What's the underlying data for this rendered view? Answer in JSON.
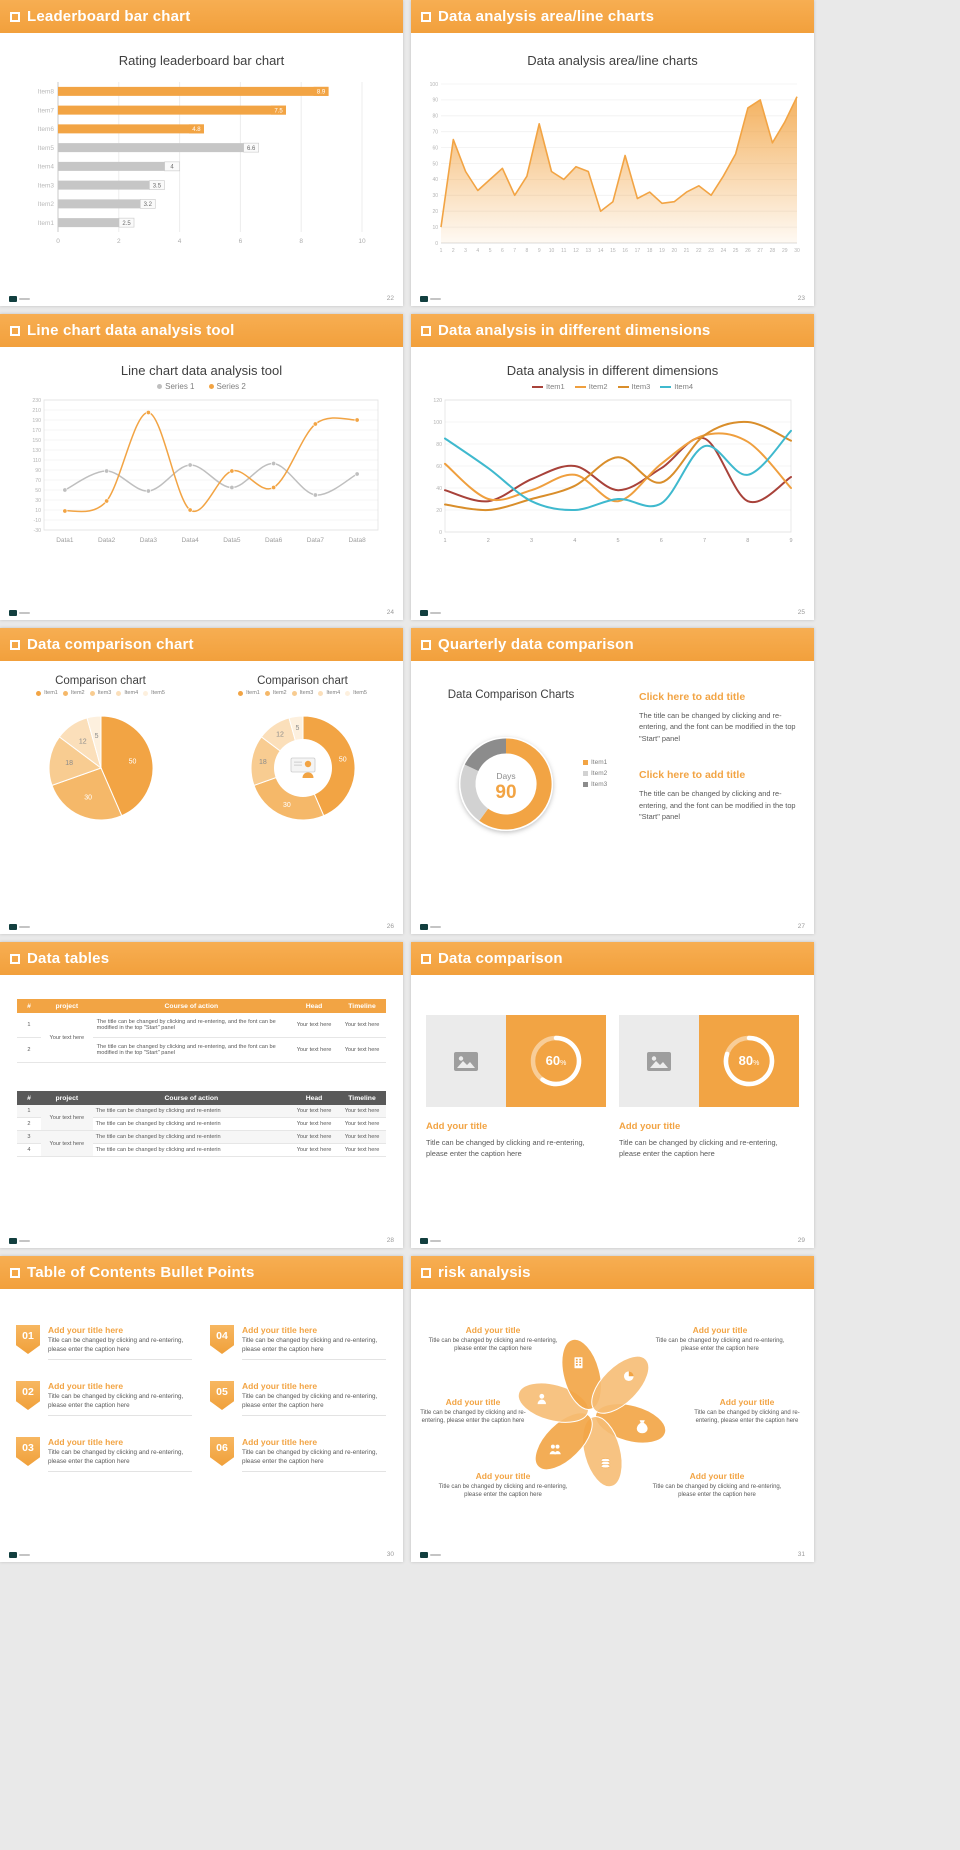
{
  "page": {
    "background": "#E9E9E9",
    "accent": "#F2A444"
  },
  "slides": {
    "s1": {
      "header": "Leaderboard bar chart",
      "page_num": "22",
      "chart": {
        "type": "hbar",
        "title": "Rating leaderboard bar chart",
        "categories": [
          "Item8",
          "Item7",
          "Item6",
          "Item5",
          "Item4",
          "Item3",
          "Item2",
          "Item1"
        ],
        "values": [
          8.9,
          7.5,
          4.8,
          6.6,
          4,
          3.5,
          3.2,
          2.5
        ],
        "highlight": [
          true,
          true,
          true,
          false,
          false,
          false,
          false,
          false
        ],
        "bar_color": "#C6C6C6",
        "highlight_color": "#F2A444",
        "xticks": [
          0,
          2,
          4,
          6,
          8,
          10
        ],
        "xlim": [
          0,
          10
        ]
      }
    },
    "s2": {
      "header": "Data analysis area/line charts",
      "page_num": "23",
      "chart": {
        "type": "area",
        "title": "Data analysis area/line charts",
        "color": "#F2A444",
        "xlabels": [
          "1",
          "2",
          "3",
          "4",
          "5",
          "6",
          "7",
          "8",
          "9",
          "10",
          "11",
          "12",
          "13",
          "14",
          "15",
          "16",
          "17",
          "18",
          "19",
          "20",
          "21",
          "22",
          "23",
          "24",
          "25",
          "26",
          "27",
          "28",
          "29",
          "30"
        ],
        "values": [
          10,
          65,
          45,
          33,
          40,
          47,
          30,
          42,
          75,
          45,
          40,
          48,
          45,
          20,
          26,
          55,
          28,
          32,
          25,
          26,
          32,
          36,
          30,
          42,
          56,
          85,
          90,
          63,
          76,
          92
        ],
        "yticks": [
          0,
          10,
          20,
          30,
          40,
          50,
          60,
          70,
          80,
          90,
          100
        ],
        "ylim": [
          0,
          100
        ]
      }
    },
    "s3": {
      "header": "Line chart data analysis tool",
      "page_num": "24",
      "chart": {
        "type": "line",
        "title": "Line chart data analysis tool",
        "categories": [
          "Data1",
          "Data2",
          "Data3",
          "Data4",
          "Data5",
          "Data6",
          "Data7",
          "Data8"
        ],
        "series": [
          {
            "name": "Series 1",
            "color": "#BFBFBF",
            "values": [
              50,
              88,
              48,
              100,
              55,
              103,
              40,
              82
            ]
          },
          {
            "name": "Series 2",
            "color": "#F2A444",
            "values": [
              8,
              28,
              205,
              10,
              88,
              55,
              182,
              190
            ]
          }
        ],
        "ylim": [
          -30,
          230
        ],
        "ytick_step": 20,
        "markers": true
      }
    },
    "s4": {
      "header": "Data analysis in different dimensions",
      "page_num": "25",
      "chart": {
        "type": "line",
        "title": "Data analysis in different dimensions",
        "categories": [
          "1",
          "2",
          "3",
          "4",
          "5",
          "6",
          "7",
          "8",
          "9"
        ],
        "series": [
          {
            "name": "Item1",
            "color": "#A8423A",
            "values": [
              38,
              28,
              48,
              60,
              38,
              58,
              85,
              28,
              50
            ]
          },
          {
            "name": "Item2",
            "color": "#EF9F3E",
            "values": [
              62,
              30,
              38,
              52,
              28,
              62,
              88,
              82,
              40
            ]
          },
          {
            "name": "Item3",
            "color": "#D98E2B",
            "values": [
              25,
              20,
              30,
              42,
              68,
              45,
              88,
              100,
              83
            ]
          },
          {
            "name": "Item4",
            "color": "#3FB9CE",
            "values": [
              85,
              58,
              28,
              20,
              30,
              26,
              78,
              52,
              92
            ]
          }
        ],
        "ylim": [
          0,
          120
        ],
        "ytick_step": 20,
        "markers": false
      }
    },
    "s5": {
      "header": "Data comparison chart",
      "page_num": "26",
      "left_title": "Comparison chart",
      "right_title": "Comparison chart",
      "pie": {
        "labels": [
          "Item1",
          "Item2",
          "Item3",
          "Item4",
          "Item5"
        ],
        "values": [
          50,
          30,
          18,
          12,
          5
        ],
        "colors": [
          "#F2A444",
          "#F5B869",
          "#F8CC91",
          "#FBDFBA",
          "#FDF0DE"
        ]
      }
    },
    "s6": {
      "header": "Quarterly data comparison",
      "page_num": "27",
      "chart_title": "Data Comparison Charts",
      "donut": {
        "center_label": "Days",
        "center_value": "90",
        "labels": [
          "Item1",
          "Item2",
          "Item3"
        ],
        "values": [
          60,
          22,
          18
        ],
        "colors": [
          "#F2A444",
          "#D2D2D2",
          "#8C8C8C"
        ]
      },
      "blocks": [
        {
          "title": "Click here to add title",
          "body": "The title can be changed by clicking and re-entering, and the font can be modified in the top \"Start\" panel"
        },
        {
          "title": "Click here to add title",
          "body": "The title can be changed by clicking and re-entering, and the font can be modified in the top \"Start\" panel"
        }
      ]
    },
    "s7": {
      "header": "Data tables",
      "page_num": "28",
      "tables": [
        {
          "style": "orange",
          "columns": [
            "#",
            "project",
            "Course of action",
            "Head",
            "Timeline"
          ],
          "rows": [
            {
              "num": "1",
              "project": "Your text here",
              "action": "The title can be changed by clicking and re-entering, and the font can be modified in the top \"Start\" panel",
              "head": "Your text here",
              "timeline": "Your text here"
            },
            {
              "num": "2",
              "project": "",
              "action": "The title can be changed by clicking and re-entering, and the font can be modified in the top \"Start\" panel",
              "head": "Your text here",
              "timeline": "Your text here"
            }
          ]
        },
        {
          "style": "dark",
          "columns": [
            "#",
            "project",
            "Course of action",
            "Head",
            "Timeline"
          ],
          "rows": [
            {
              "num": "1",
              "project": "Your text here",
              "action": "The title can be changed by clicking and re-enterin",
              "head": "Your text here",
              "timeline": "Your text here"
            },
            {
              "num": "2",
              "project": "",
              "action": "The title can be changed by clicking and re-enterin",
              "head": "Your text here",
              "timeline": "Your text here"
            },
            {
              "num": "3",
              "project": "Your text here",
              "action": "The title can be changed by clicking and re-enterin",
              "head": "Your text here",
              "timeline": "Your text here"
            },
            {
              "num": "4",
              "project": "",
              "action": "The title can be changed by clicking and re-enterin",
              "head": "Your text here",
              "timeline": "Your text here"
            }
          ]
        }
      ]
    },
    "s8": {
      "header": "Data comparison",
      "page_num": "29",
      "cards": [
        {
          "percent": 60,
          "percent_label": "60",
          "percent_suffix": "%",
          "title": "Add your title",
          "body": "Title can be changed by clicking and re-entering, please enter the caption here"
        },
        {
          "percent": 80,
          "percent_label": "80",
          "percent_suffix": "%",
          "title": "Add your title",
          "body": "Title can be changed by clicking and re-entering, please enter the caption here"
        }
      ]
    },
    "s9": {
      "header": "Table of Contents Bullet Points",
      "page_num": "30",
      "items": [
        {
          "num": "01",
          "title": "Add your title here",
          "body": "Title can be changed by clicking and re-entering, please enter the caption here"
        },
        {
          "num": "02",
          "title": "Add your title here",
          "body": "Title can be changed by clicking and re-entering, please enter the caption here"
        },
        {
          "num": "03",
          "title": "Add your title here",
          "body": "Title can be changed by clicking and re-entering, please enter the caption here"
        },
        {
          "num": "04",
          "title": "Add your title here",
          "body": "Title can be changed by clicking and re-entering, please enter the caption here"
        },
        {
          "num": "05",
          "title": "Add your title here",
          "body": "Title can be changed by clicking and re-entering, please enter the caption here"
        },
        {
          "num": "06",
          "title": "Add your title here",
          "body": "Title can be changed by clicking and re-entering, please enter the caption here"
        }
      ]
    },
    "s10": {
      "header": "risk analysis",
      "page_num": "31",
      "icons": [
        "money-bag",
        "coins",
        "people",
        "user",
        "building",
        "pie-chart"
      ],
      "items": [
        {
          "title": "Add your title",
          "body": "Title can be changed by clicking and re-entering, please enter the caption here"
        },
        {
          "title": "Add your title",
          "body": "Title can be changed by clicking and re-entering, please enter the caption here"
        },
        {
          "title": "Add your title",
          "body": "Title can be changed by clicking and re-entering, please enter the caption here"
        },
        {
          "title": "Add your title",
          "body": "Title can be changed by clicking and re-entering, please enter the caption here"
        },
        {
          "title": "Add your title",
          "body": "Title can be changed by clicking and re-entering, please enter the caption here"
        },
        {
          "title": "Add your title",
          "body": "Title can be changed by clicking and re-entering, please enter the caption here"
        }
      ]
    }
  }
}
